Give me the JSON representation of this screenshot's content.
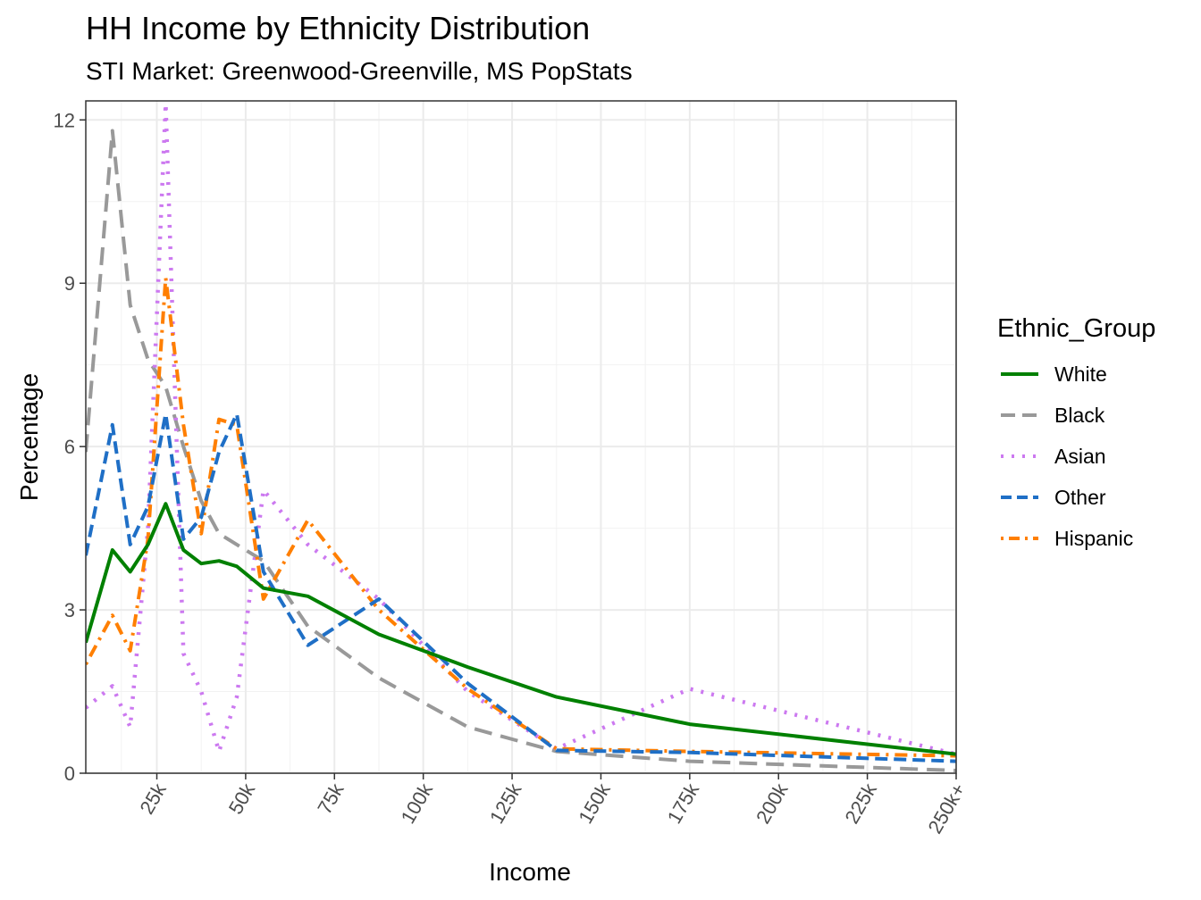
{
  "chart_data": {
    "type": "line",
    "title": "HH Income by Ethnicity Distribution",
    "subtitle": "STI Market: Greenwood-Greenville, MS PopStats",
    "xlabel": "Income",
    "ylabel": "Percentage",
    "legend_title": "Ethnic_Group",
    "legend_position": "right",
    "grid": true,
    "xlim": [
      5000,
      250000
    ],
    "ylim": [
      0,
      12.3
    ],
    "x_ticks": [
      {
        "value": 25000,
        "label": "25k"
      },
      {
        "value": 50000,
        "label": "50k"
      },
      {
        "value": 75000,
        "label": "75k"
      },
      {
        "value": 100000,
        "label": "100k"
      },
      {
        "value": 125000,
        "label": "125k"
      },
      {
        "value": 150000,
        "label": "150k"
      },
      {
        "value": 175000,
        "label": "175k"
      },
      {
        "value": 200000,
        "label": "200k"
      },
      {
        "value": 225000,
        "label": "225k"
      },
      {
        "value": 250000,
        "label": "250k+"
      }
    ],
    "y_ticks": [
      {
        "value": 0,
        "label": "0"
      },
      {
        "value": 3,
        "label": "3"
      },
      {
        "value": 6,
        "label": "6"
      },
      {
        "value": 9,
        "label": "9"
      },
      {
        "value": 12,
        "label": "12"
      }
    ],
    "x": [
      5000,
      12500,
      17500,
      22500,
      27500,
      32500,
      37500,
      42500,
      47500,
      55000,
      67500,
      87500,
      112500,
      137500,
      175000,
      250000
    ],
    "series": [
      {
        "name": "White",
        "color": "#008000",
        "dash": "solid",
        "values": [
          2.4,
          4.1,
          3.7,
          4.2,
          4.95,
          4.1,
          3.85,
          3.9,
          3.8,
          3.4,
          3.25,
          2.55,
          1.95,
          1.4,
          0.9,
          0.35
        ]
      },
      {
        "name": "Black",
        "color": "#999999",
        "dash": "longdash",
        "values": [
          5.9,
          11.8,
          8.6,
          7.6,
          7.1,
          6.0,
          5.0,
          4.4,
          4.2,
          3.9,
          2.7,
          1.75,
          0.85,
          0.4,
          0.22,
          0.05
        ]
      },
      {
        "name": "Asian",
        "color": "#cc79f0",
        "dash": "dotted",
        "values": [
          1.2,
          1.6,
          0.85,
          4.5,
          12.3,
          2.2,
          1.5,
          0.4,
          1.4,
          5.2,
          4.2,
          3.2,
          1.5,
          0.45,
          1.55,
          0.35
        ]
      },
      {
        "name": "Other",
        "color": "#1f6fc6",
        "dash": "dashed",
        "values": [
          4.0,
          6.4,
          4.2,
          4.9,
          6.6,
          4.3,
          4.7,
          5.9,
          6.6,
          3.7,
          2.35,
          3.2,
          1.65,
          0.42,
          0.38,
          0.22
        ]
      },
      {
        "name": "Hispanic",
        "color": "#ff7f00",
        "dash": "dotdash",
        "values": [
          2.0,
          2.9,
          2.25,
          4.3,
          9.1,
          6.4,
          4.4,
          6.5,
          6.4,
          3.2,
          4.65,
          3.0,
          1.55,
          0.45,
          0.4,
          0.32
        ]
      }
    ]
  }
}
